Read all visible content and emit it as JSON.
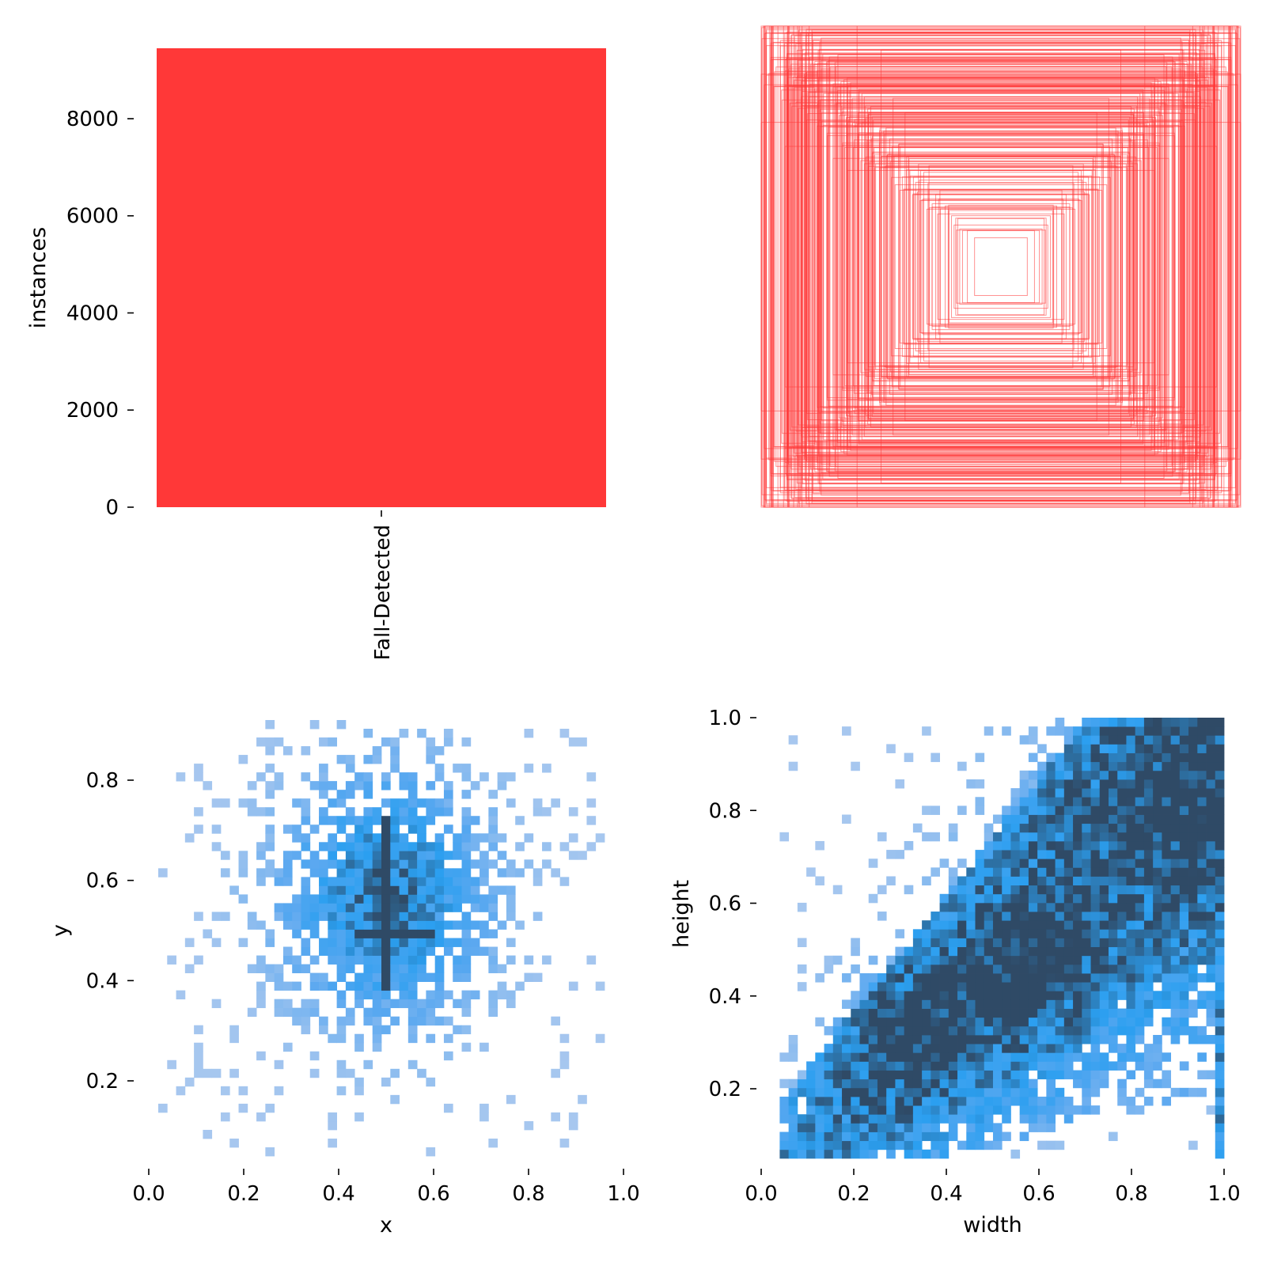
{
  "colors": {
    "bar": "#ff3838",
    "boxes": "#ff3838",
    "hist_light": "#a7c7ef",
    "hist_mid": "#5aa8f0",
    "hist_bright": "#2b9ff0",
    "hist_dark": "#2f4a66"
  },
  "chart_data": [
    {
      "type": "bar",
      "categories": [
        "Fall-Detected"
      ],
      "values": [
        9450
      ],
      "ylabel": "instances",
      "ylim": [
        0,
        9450
      ],
      "yticks": [
        0,
        2000,
        4000,
        6000,
        8000
      ],
      "ytick_labels": [
        "0",
        "2000",
        "4000",
        "6000",
        "8000"
      ],
      "grid": false
    },
    {
      "type": "boxes",
      "description_units": "normalized box sizes centred at 0.5",
      "boxes": [
        {
          "w": 1.0,
          "h": 1.0
        },
        {
          "w": 0.98,
          "h": 0.99
        },
        {
          "w": 0.96,
          "h": 0.97
        },
        {
          "w": 0.92,
          "h": 0.94
        },
        {
          "w": 0.9,
          "h": 0.86
        },
        {
          "w": 0.85,
          "h": 0.9
        },
        {
          "w": 0.82,
          "h": 0.8
        },
        {
          "w": 0.78,
          "h": 0.84
        },
        {
          "w": 0.74,
          "h": 0.72
        },
        {
          "w": 0.7,
          "h": 0.76
        },
        {
          "w": 0.66,
          "h": 0.66
        },
        {
          "w": 0.62,
          "h": 0.7
        },
        {
          "w": 0.58,
          "h": 0.6
        },
        {
          "w": 0.55,
          "h": 0.52
        },
        {
          "w": 0.5,
          "h": 0.56
        },
        {
          "w": 0.45,
          "h": 0.46
        },
        {
          "w": 0.42,
          "h": 0.5
        },
        {
          "w": 0.38,
          "h": 0.4
        },
        {
          "w": 0.34,
          "h": 0.36
        },
        {
          "w": 0.3,
          "h": 0.32
        },
        {
          "w": 0.26,
          "h": 0.28
        },
        {
          "w": 0.22,
          "h": 0.24
        },
        {
          "w": 0.18,
          "h": 0.2
        },
        {
          "w": 0.14,
          "h": 0.15
        },
        {
          "w": 0.11,
          "h": 0.12
        },
        {
          "w": 1.0,
          "h": 0.8
        },
        {
          "w": 0.8,
          "h": 1.0
        },
        {
          "w": 1.0,
          "h": 0.6
        },
        {
          "w": 0.6,
          "h": 1.0
        },
        {
          "w": 0.9,
          "h": 0.5
        },
        {
          "w": 0.5,
          "h": 0.9
        },
        {
          "w": 0.7,
          "h": 0.45
        },
        {
          "w": 0.45,
          "h": 0.7
        },
        {
          "w": 0.88,
          "h": 0.68
        },
        {
          "w": 0.68,
          "h": 0.88
        },
        {
          "w": 0.95,
          "h": 0.75
        },
        {
          "w": 0.75,
          "h": 0.95
        },
        {
          "w": 0.64,
          "h": 0.4
        },
        {
          "w": 0.4,
          "h": 0.64
        },
        {
          "w": 0.86,
          "h": 0.96
        },
        {
          "w": 0.96,
          "h": 0.86
        },
        {
          "w": 0.72,
          "h": 0.58
        },
        {
          "w": 0.58,
          "h": 0.72
        },
        {
          "w": 0.36,
          "h": 0.3
        },
        {
          "w": 0.3,
          "h": 0.42
        }
      ]
    },
    {
      "type": "heatmap",
      "xlabel": "x",
      "ylabel": "y",
      "xlim": [
        0.0,
        1.0
      ],
      "ylim": [
        0.03,
        0.93
      ],
      "xticks": [
        0.0,
        0.2,
        0.4,
        0.6,
        0.8,
        1.0
      ],
      "xtick_labels": [
        "0.0",
        "0.2",
        "0.4",
        "0.6",
        "0.8",
        "1.0"
      ],
      "yticks": [
        0.2,
        0.4,
        0.6,
        0.8
      ],
      "ytick_labels": [
        "0.2",
        "0.4",
        "0.6",
        "0.8"
      ],
      "center": [
        0.5,
        0.57
      ],
      "spread": [
        0.15,
        0.17
      ],
      "x_range": [
        0.02,
        0.96
      ],
      "y_range": [
        0.05,
        0.92
      ],
      "bins": [
        50,
        50
      ],
      "hotspot": [
        {
          "x0": 0.49,
          "x1": 0.51,
          "y0": 0.38,
          "y1": 0.72
        },
        {
          "x0": 0.43,
          "x1": 0.6,
          "y0": 0.49,
          "y1": 0.51
        }
      ]
    },
    {
      "type": "heatmap",
      "xlabel": "width",
      "ylabel": "height",
      "xlim": [
        0.0,
        1.0
      ],
      "ylim": [
        0.03,
        1.0
      ],
      "xticks": [
        0.0,
        0.2,
        0.4,
        0.6,
        0.8,
        1.0
      ],
      "xtick_labels": [
        "0.0",
        "0.2",
        "0.4",
        "0.6",
        "0.8",
        "1.0"
      ],
      "yticks": [
        0.2,
        0.4,
        0.6,
        0.8,
        1.0
      ],
      "ytick_labels": [
        "0.2",
        "0.4",
        "0.6",
        "0.8",
        "1.0"
      ],
      "x_range": [
        0.04,
        1.0
      ],
      "y_range": [
        0.05,
        1.0
      ],
      "bins": [
        50,
        50
      ],
      "dense_band": {
        "center_slope": 1.05,
        "intercept": -0.05,
        "width": 0.16
      },
      "dense_spots": [
        {
          "x": 0.32,
          "y": 0.32,
          "r": 0.1
        },
        {
          "x": 0.58,
          "y": 0.45,
          "r": 0.12
        },
        {
          "x": 0.99,
          "y": 0.78,
          "r": 0.22
        }
      ]
    }
  ]
}
